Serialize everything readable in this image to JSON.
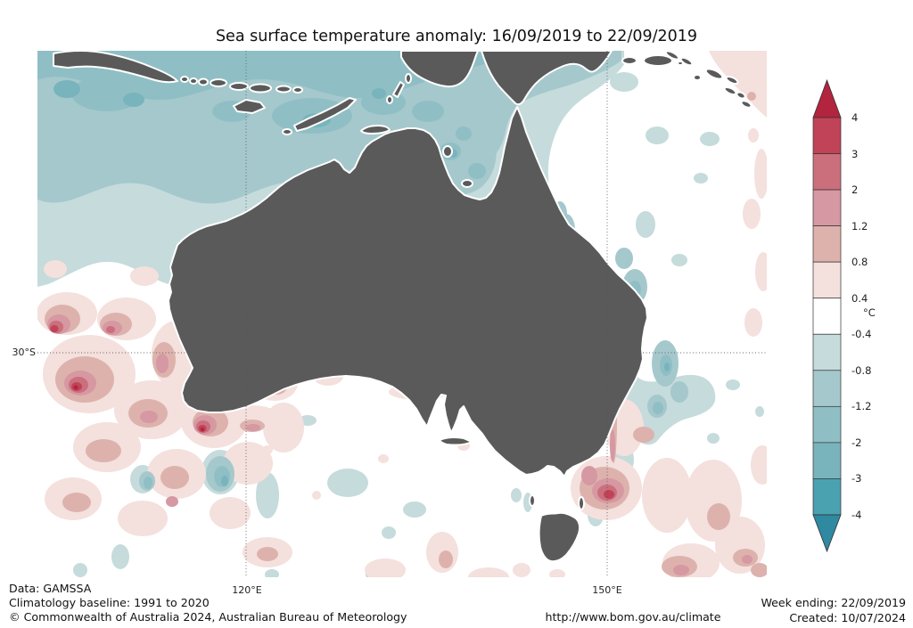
{
  "title": "Sea surface temperature anomaly: 16/09/2019 to 22/09/2019",
  "map": {
    "x_tick_labels": [
      "120°E",
      "150°E"
    ],
    "y_tick_labels": [
      "30°S"
    ],
    "land_color": "#5a5a5a"
  },
  "colorbar": {
    "unit": "°C",
    "tick_labels": [
      "4",
      "3",
      "2",
      "1.2",
      "0.8",
      "0.4",
      "-0.4",
      "-0.8",
      "-1.2",
      "-2",
      "-3",
      "-4"
    ],
    "colors": [
      "#b3243f",
      "#c04358",
      "#cb6f7c",
      "#d698a2",
      "#ddb2ad",
      "#f4e0dd",
      "#ffffff",
      "#c5dbdc",
      "#a5c8cc",
      "#8fbfc5",
      "#79b4bd",
      "#4aa2b1",
      "#2f89a0"
    ]
  },
  "footer": {
    "data_source": "Data: GAMSSA",
    "baseline": "Climatology baseline: 1991 to 2020",
    "copyright": "© Commonwealth of Australia 2024, Australian Bureau of Meteorology",
    "url": "http://www.bom.gov.au/climate",
    "week_ending": "Week ending: 22/09/2019",
    "created": "Created: 10/07/2024"
  },
  "chart_data": {
    "type": "heatmap",
    "subtype": "filled-contour-anomaly-map",
    "title": "Sea surface temperature anomaly: 16/09/2019 to 22/09/2019",
    "period": {
      "start": "16/09/2019",
      "end": "22/09/2019",
      "week_ending": "22/09/2019"
    },
    "units": "°C",
    "contour_levels": [
      -4,
      -3,
      -2,
      -1.2,
      -0.8,
      -0.4,
      0.4,
      0.8,
      1.2,
      2,
      3,
      4
    ],
    "palette": [
      "#b3243f",
      "#c04358",
      "#cb6f7c",
      "#d698a2",
      "#ddb2ad",
      "#f4e0dd",
      "#ffffff",
      "#c5dbdc",
      "#a5c8cc",
      "#8fbfc5",
      "#79b4bd",
      "#4aa2b1",
      "#2f89a0"
    ],
    "colorbar_orientation": "vertical-right, open-ended arrows above 4 and below -4",
    "geo_extent": {
      "lon_approx": [
        "103°E",
        "163°E"
      ],
      "lat_approx": [
        "5°S",
        "48°S"
      ],
      "region": "Australia and surrounding oceans"
    },
    "gridlines": {
      "meridians": [
        "120°E",
        "150°E"
      ],
      "parallels": [
        "30°S"
      ],
      "style": "dotted"
    },
    "features": [
      {
        "area": "Timor, Arafura and northern seas (Java to PNG)",
        "anomaly_c": "-0.4 to -2, locally -2 to -3 south of Java"
      },
      {
        "area": "Gulf of Carpentaria",
        "anomaly_c": "-0.8 to -2"
      },
      {
        "area": "Queensland / Great Barrier Reef coastal strip",
        "anomaly_c": "-0.4 to -1.2"
      },
      {
        "area": "Northern NSW coast and northern Tasman band",
        "anomaly_c": "-0.8 to -2, small cores to -3"
      },
      {
        "area": "SE Indian Ocean southwest of Western Australia",
        "anomaly_c": "+0.4 to +1.2 widespread, cores +2 to +4 near 30°S and 35°S"
      },
      {
        "area": "Bass Strait / east of Victoria near 150°E",
        "anomaly_c": "+1.2 to +3 warm core"
      },
      {
        "area": "Tasman Sea",
        "anomaly_c": "scattered +0.4 to +1.2 patches"
      },
      {
        "area": "Great Australian Bight and Southern Ocean",
        "anomaly_c": "mostly -0.4 to +0.4 (neutral) with small mixed patches"
      },
      {
        "area": "Solomon Sea / top-right corner",
        "anomaly_c": "+0.4 to +0.8"
      }
    ],
    "data_source": "GAMSSA",
    "climatology_baseline": "1991 to 2020"
  }
}
